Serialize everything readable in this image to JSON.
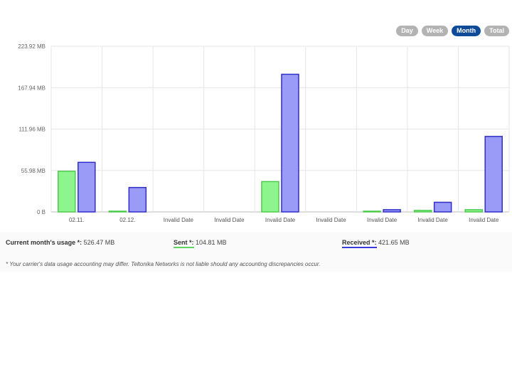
{
  "range_tabs": [
    {
      "label": "Day",
      "active": false
    },
    {
      "label": "Week",
      "active": false
    },
    {
      "label": "Month",
      "active": true
    },
    {
      "label": "Total",
      "active": false
    }
  ],
  "chart_data": {
    "type": "bar",
    "categories": [
      "02.11.",
      "02.12.",
      "Invalid Date",
      "Invalid Date",
      "Invalid Date",
      "Invalid Date",
      "Invalid Date",
      "Invalid Date",
      "Invalid Date"
    ],
    "series": [
      {
        "name": "Sent *",
        "color": "#8ef58e",
        "stroke": "#4ecb4e",
        "values": [
          55,
          1,
          0,
          0,
          41,
          0,
          1,
          2,
          3
        ]
      },
      {
        "name": "Received *",
        "color": "#9a9af7",
        "stroke": "#2f2fc8",
        "values": [
          67,
          33,
          0,
          0,
          186,
          0,
          3,
          13,
          102
        ]
      }
    ],
    "yticks": [
      "0 B",
      "55.98 MB",
      "111.96 MB",
      "167.94 MB",
      "223.92 MB"
    ],
    "ylim": [
      0,
      223.92
    ],
    "unit": "MB",
    "grid": true
  },
  "summary": {
    "current_label": "Current month's usage *:",
    "current_value": "526.47 MB",
    "sent_label": "Sent *:",
    "sent_value": "104.81 MB",
    "received_label": "Received *:",
    "received_value": "421.65 MB"
  },
  "note": "* Your carrier's data usage accounting may differ. Teltonika Networks is not liable should any accounting discrepancies occur."
}
